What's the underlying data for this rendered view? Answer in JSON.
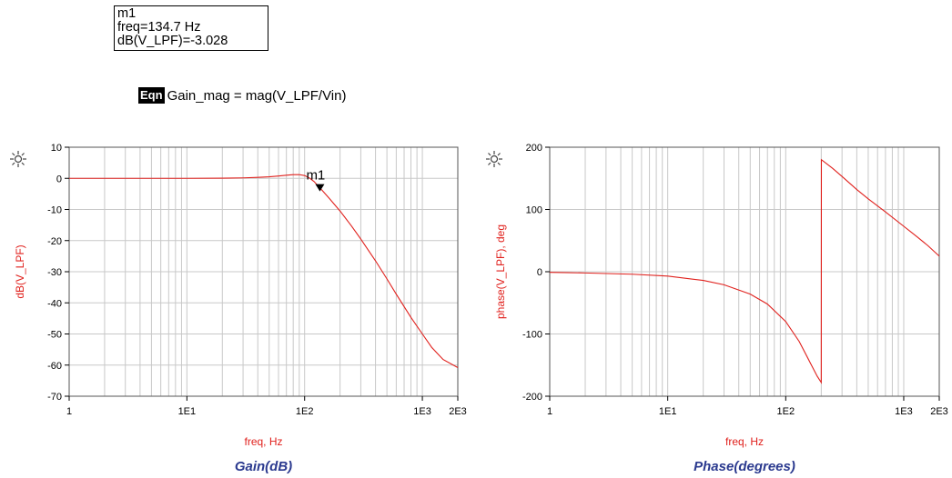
{
  "marker": {
    "name": "m1",
    "freq_text": "freq=134.7 Hz",
    "value_text": "dB(V_LPF)=-3.028"
  },
  "equation": {
    "tag": "Eqn",
    "text": "Gain_mag = mag(V_LPF/Vin)"
  },
  "colors": {
    "trace": "#e0201c",
    "title": "#2b3a8f",
    "grid": "#c8c8c8"
  },
  "icons": [
    "sun-icon",
    "sun-icon"
  ],
  "chart_data": [
    {
      "type": "line",
      "title": "Gain(dB)",
      "xlabel": "freq, Hz",
      "ylabel": "dB(V_LPF)",
      "x_scale": "log",
      "xlim": [
        1,
        2000
      ],
      "ylim": [
        -70,
        10
      ],
      "x_ticks": [
        1,
        10,
        100,
        1000,
        2000
      ],
      "x_tick_labels": [
        "1",
        "1E1",
        "1E2",
        "1E3",
        "2E3"
      ],
      "y_ticks": [
        10,
        0,
        -10,
        -20,
        -30,
        -40,
        -50,
        -60,
        -70
      ],
      "y_tick_labels": [
        "10",
        "0",
        "-10",
        "-20",
        "-30",
        "-40",
        "-50",
        "-60",
        "-70"
      ],
      "grid": true,
      "series": [
        {
          "x": [
            1,
            5,
            10,
            20,
            30,
            40,
            50,
            60,
            70,
            80,
            90,
            100,
            110,
            120,
            134.7,
            160,
            200,
            250,
            300,
            400,
            500,
            600,
            800,
            1000,
            1200,
            1500,
            2000
          ],
          "y": [
            0,
            0,
            0,
            0.05,
            0.15,
            0.3,
            0.5,
            0.75,
            1.0,
            1.2,
            1.2,
            0.9,
            0.1,
            -1.0,
            -3.028,
            -6.2,
            -10.5,
            -15.3,
            -19.5,
            -26.5,
            -32.3,
            -37.2,
            -44.7,
            -50.0,
            -54.3,
            -58.2,
            -60.8
          ]
        }
      ],
      "markers": [
        {
          "name": "m1",
          "x": 134.7,
          "y": -3.028
        }
      ]
    },
    {
      "type": "line",
      "title": "Phase(degrees)",
      "xlabel": "freq, Hz",
      "ylabel": "phase(V_LPF), deg",
      "x_scale": "log",
      "xlim": [
        1,
        2000
      ],
      "ylim": [
        -200,
        200
      ],
      "x_ticks": [
        1,
        10,
        100,
        1000,
        2000
      ],
      "x_tick_labels": [
        "1",
        "1E1",
        "1E2",
        "1E3",
        "2E3"
      ],
      "y_ticks": [
        200,
        100,
        0,
        -100,
        -200
      ],
      "y_tick_labels": [
        "200",
        "100",
        "0",
        "-100",
        "-200"
      ],
      "grid": true,
      "series": [
        {
          "x": [
            1,
            2,
            5,
            10,
            20,
            30,
            50,
            70,
            100,
            130,
            160,
            185,
            200,
            200.5,
            250,
            300,
            400,
            500,
            700,
            1000,
            1300,
            1600,
            2000
          ],
          "y": [
            -1,
            -2,
            -4,
            -7,
            -14,
            -21,
            -36,
            -52,
            -80,
            -112,
            -145,
            -168,
            -178,
            180,
            166,
            153,
            132,
            117,
            96,
            73,
            56,
            42,
            25
          ]
        }
      ]
    }
  ]
}
